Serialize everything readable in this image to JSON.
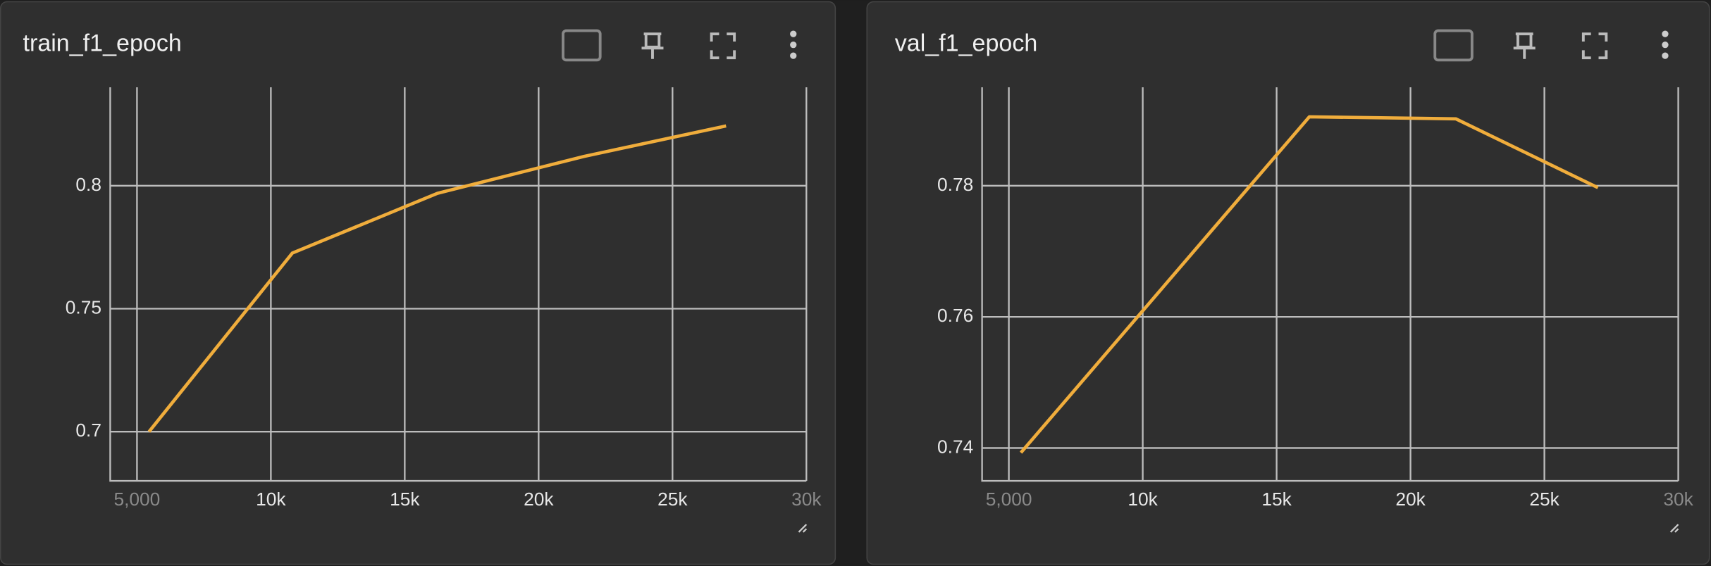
{
  "chart_data": [
    {
      "type": "line",
      "title": "train_f1_epoch",
      "x": [
        5450,
        10800,
        16220,
        21690,
        27000
      ],
      "values": [
        0.7,
        0.7726,
        0.7969,
        0.8119,
        0.8243
      ],
      "color": "#f0ad3c",
      "xlim": [
        4000,
        30000
      ],
      "xticks": [
        {
          "value": 5000,
          "label": "5,000"
        },
        {
          "value": 10000,
          "label": "10k"
        },
        {
          "value": 15000,
          "label": "15k"
        },
        {
          "value": 20000,
          "label": "20k"
        },
        {
          "value": 25000,
          "label": "25k"
        },
        {
          "value": 30000,
          "label": "30k"
        }
      ],
      "ylim": [
        0.68,
        0.84
      ],
      "yticks": [
        0.7,
        0.75,
        0.8
      ],
      "grid": true
    },
    {
      "type": "line",
      "title": "val_f1_epoch",
      "x": [
        5450,
        16220,
        21690,
        27000
      ],
      "values": [
        0.7393,
        0.7905,
        0.7902,
        0.7797
      ],
      "color": "#f0ad3c",
      "xlim": [
        4000,
        30000
      ],
      "xticks": [
        {
          "value": 5000,
          "label": "5,000"
        },
        {
          "value": 10000,
          "label": "10k"
        },
        {
          "value": 15000,
          "label": "15k"
        },
        {
          "value": 20000,
          "label": "20k"
        },
        {
          "value": 25000,
          "label": "25k"
        },
        {
          "value": 30000,
          "label": "30k"
        }
      ],
      "ylim": [
        0.735,
        0.795
      ],
      "yticks": [
        0.74,
        0.76,
        0.78
      ],
      "grid": true
    }
  ]
}
